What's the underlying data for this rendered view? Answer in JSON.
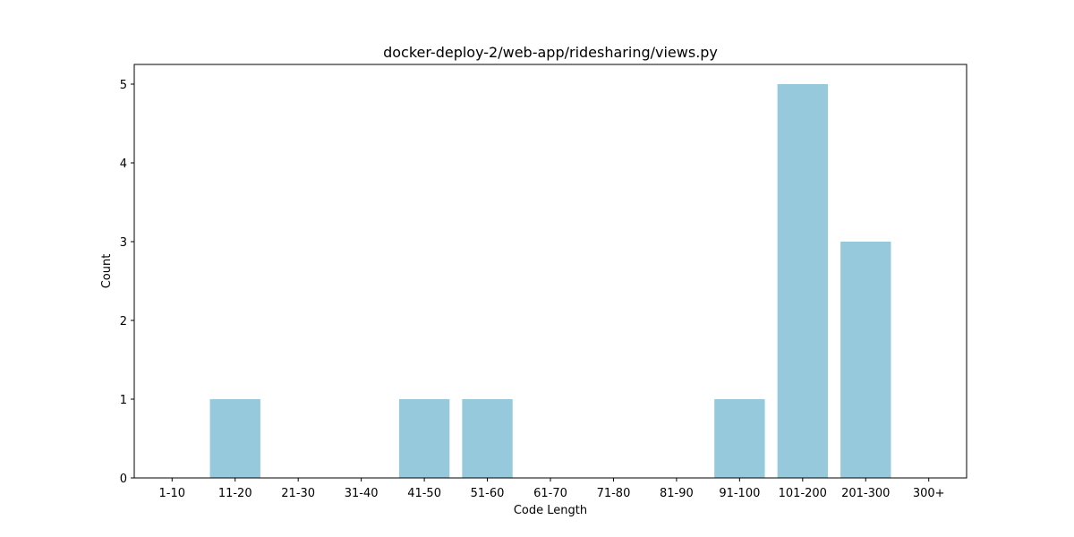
{
  "chart_data": {
    "type": "bar",
    "title": "docker-deploy-2/web-app/ridesharing/views.py",
    "xlabel": "Code Length",
    "ylabel": "Count",
    "categories": [
      "1-10",
      "11-20",
      "21-30",
      "31-40",
      "41-50",
      "51-60",
      "61-70",
      "71-80",
      "81-90",
      "91-100",
      "101-200",
      "201-300",
      "300+"
    ],
    "values": [
      0,
      1,
      0,
      0,
      1,
      1,
      0,
      0,
      0,
      1,
      5,
      3,
      0
    ],
    "ylim": [
      0,
      5.25
    ],
    "yticks": [
      0,
      1,
      2,
      3,
      4,
      5
    ],
    "bar_color": "#96c9dc",
    "grid": false,
    "legend": "none"
  }
}
